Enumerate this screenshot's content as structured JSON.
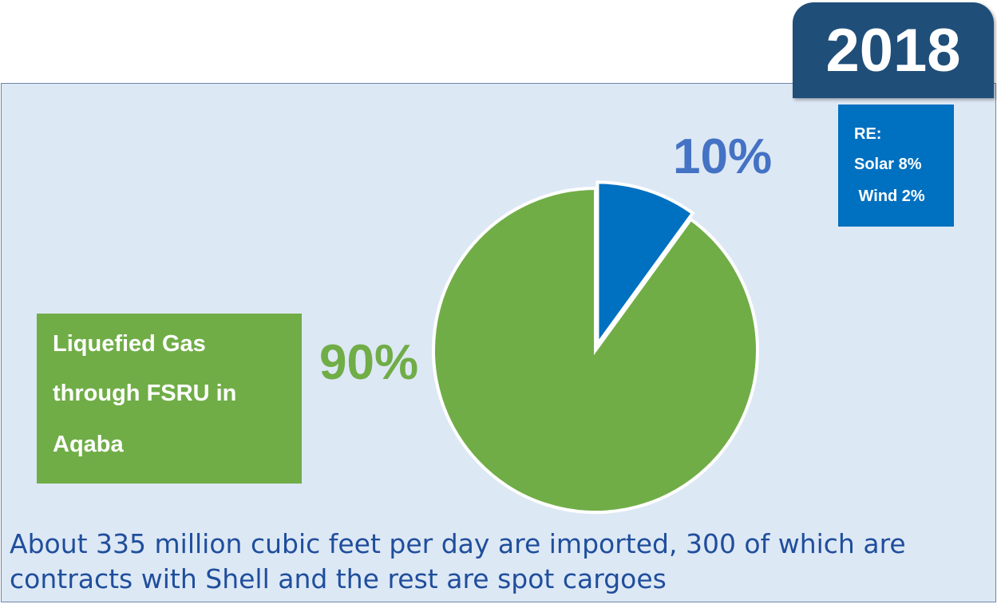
{
  "year": "2018",
  "re_box": {
    "lines": [
      "RE:",
      "Solar 8%",
      " Wind 2%"
    ]
  },
  "gas_box": {
    "lines": [
      "Liquefied Gas",
      "through FSRU in",
      "Aqaba"
    ]
  },
  "footer": {
    "line1": "About 335 million cubic feet per day are imported, 300 of which are",
    "line2": "contracts with Shell and the rest are spot cargoes"
  },
  "chart_data": {
    "type": "pie",
    "slices": [
      {
        "label": "10%",
        "value": 10,
        "color": "#0070c0"
      },
      {
        "label": "90%",
        "value": 90,
        "color": "#70ad47"
      }
    ]
  }
}
